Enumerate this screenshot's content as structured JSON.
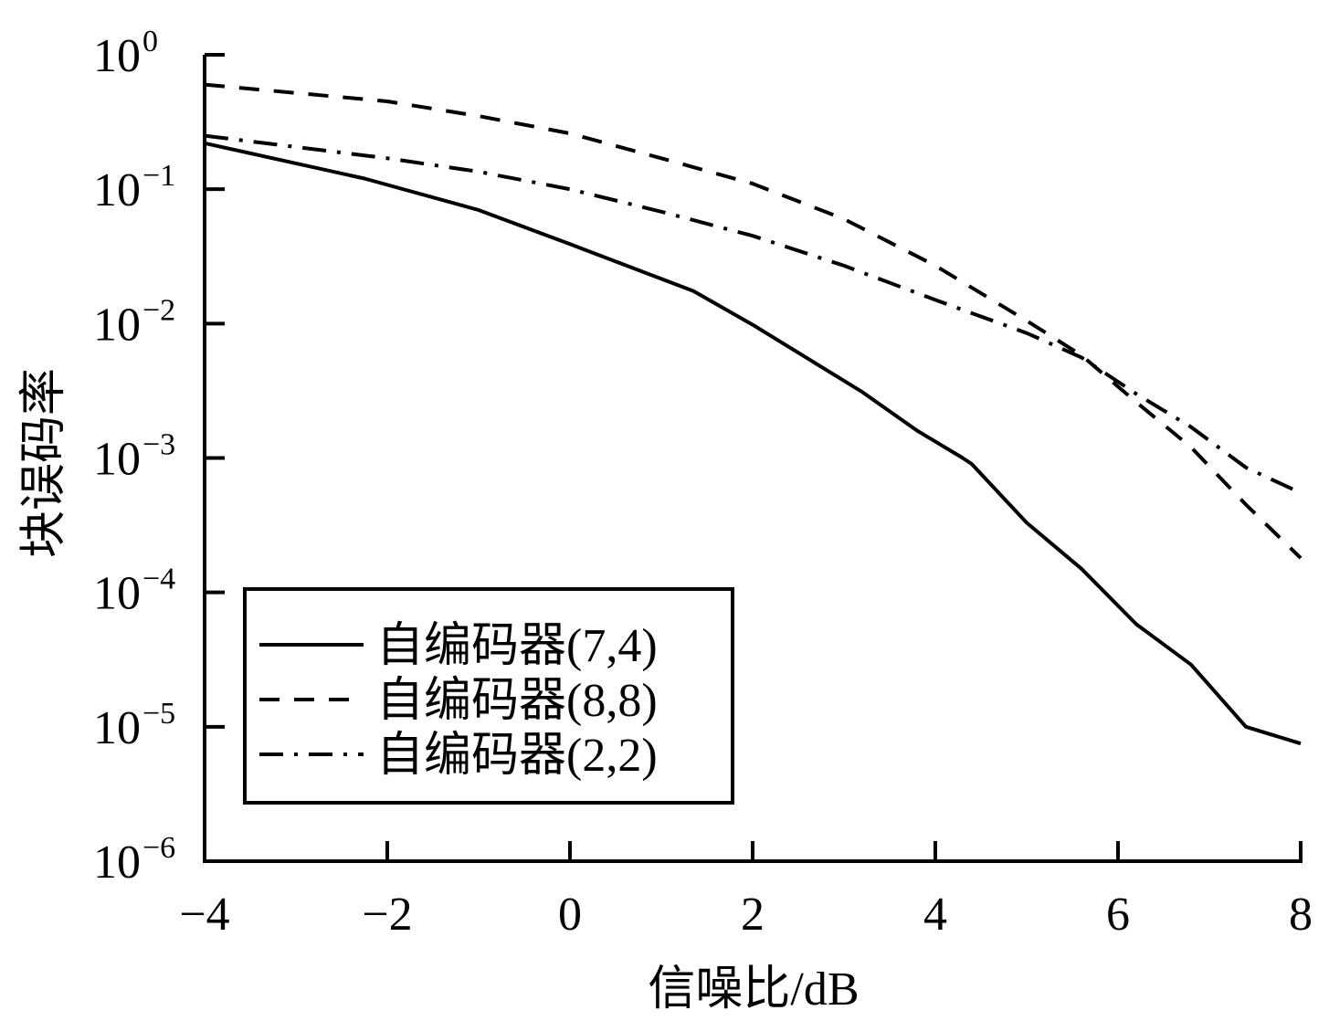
{
  "chart_data": {
    "type": "line",
    "xlabel": "信噪比/dB",
    "ylabel": "块误码率",
    "xlim": [
      -4,
      8
    ],
    "ylim": [
      1e-06,
      1
    ],
    "yscale": "log",
    "grid": false,
    "legend_position": "lower-left",
    "x_ticks": [
      {
        "value": -4,
        "label": "−4"
      },
      {
        "value": -2,
        "label": "−2"
      },
      {
        "value": 0,
        "label": "0"
      },
      {
        "value": 2,
        "label": "2"
      },
      {
        "value": 4,
        "label": "4"
      },
      {
        "value": 6,
        "label": "6"
      },
      {
        "value": 8,
        "label": "8"
      }
    ],
    "y_ticks": [
      {
        "value": 1,
        "base": "10",
        "exp": "0"
      },
      {
        "value": 0.1,
        "base": "10",
        "exp": "−1"
      },
      {
        "value": 0.01,
        "base": "10",
        "exp": "−2"
      },
      {
        "value": 0.001,
        "base": "10",
        "exp": "−3"
      },
      {
        "value": 0.0001,
        "base": "10",
        "exp": "−4"
      },
      {
        "value": 1e-05,
        "base": "10",
        "exp": "−5"
      },
      {
        "value": 1e-06,
        "base": "10",
        "exp": "−6"
      }
    ],
    "series": [
      {
        "name": "自编码器(7,4)",
        "style": "solid",
        "color": "#000000",
        "x": [
          -4,
          -2.25,
          -1,
          0,
          1.35,
          2,
          3.2,
          3.8,
          4.3,
          4.4,
          5,
          5.6,
          6.2,
          6.8,
          7.4,
          8
        ],
        "y": [
          0.22,
          0.12,
          0.07,
          0.039,
          0.0175,
          0.0098,
          0.0031,
          0.0016,
          0.001,
          0.0009,
          0.00033,
          0.00015,
          5.8e-05,
          2.9e-05,
          1e-05,
          7.5e-06
        ]
      },
      {
        "name": "自编码器(8,8)",
        "style": "dashed",
        "color": "#000000",
        "x": [
          -4,
          -2,
          -1,
          0,
          1,
          2,
          3,
          4,
          5,
          5.6,
          6.2,
          6.8,
          7.4,
          8
        ],
        "y": [
          0.6,
          0.45,
          0.35,
          0.26,
          0.17,
          0.11,
          0.06,
          0.027,
          0.0105,
          0.0058,
          0.0026,
          0.0012,
          0.00045,
          0.00018
        ]
      },
      {
        "name": "自编码器(2,2)",
        "style": "dashdot",
        "color": "#000000",
        "x": [
          -4,
          -2,
          -1,
          0,
          1,
          2,
          3,
          4,
          5,
          5.6,
          6.2,
          6.8,
          7.4,
          8
        ],
        "y": [
          0.25,
          0.17,
          0.135,
          0.1,
          0.068,
          0.045,
          0.027,
          0.015,
          0.0085,
          0.0056,
          0.003,
          0.0017,
          0.00085,
          0.00055
        ]
      }
    ]
  }
}
